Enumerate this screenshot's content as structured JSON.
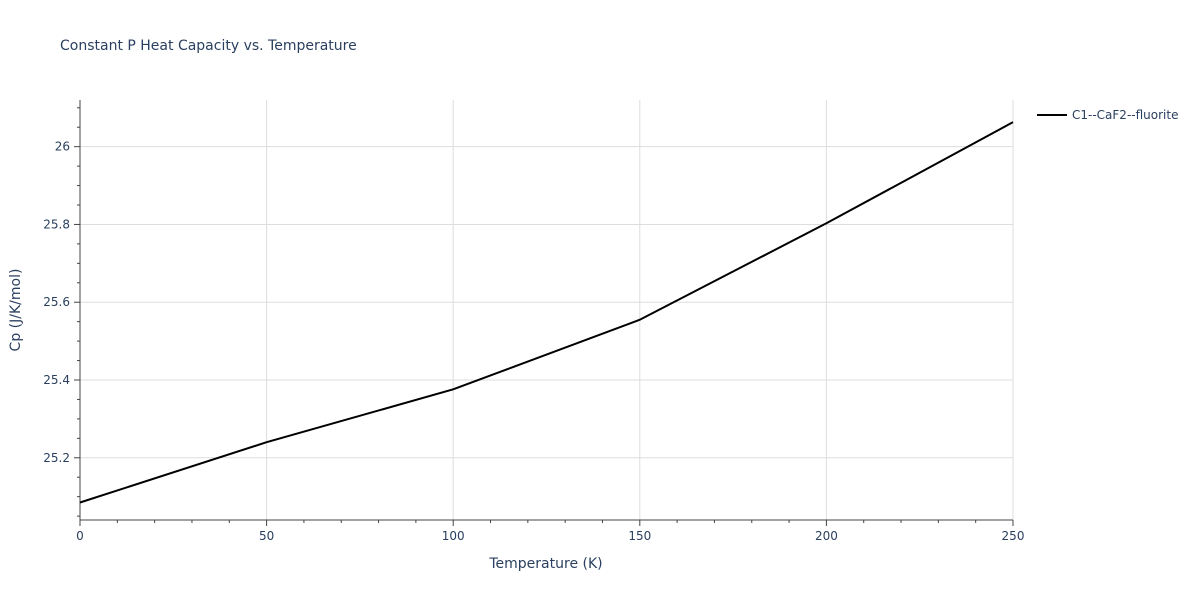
{
  "chart_data": {
    "type": "line",
    "title": "Constant P Heat Capacity vs. Temperature",
    "xlabel": "Temperature (K)",
    "ylabel": "Cp (J/K/mol)",
    "xlim": [
      0,
      250
    ],
    "ylim": [
      25.04,
      26.12
    ],
    "x_ticks": [
      0,
      50,
      100,
      150,
      200,
      250
    ],
    "x_tick_labels": [
      "0",
      "50",
      "100",
      "150",
      "200",
      "250"
    ],
    "y_ticks": [
      25.2,
      25.4,
      25.6,
      25.8,
      26.0
    ],
    "y_tick_labels": [
      "25.2",
      "25.4",
      "25.6",
      "25.8",
      "26"
    ],
    "grid": true,
    "legend_position": "top-right outside",
    "series": [
      {
        "name": "C1--CaF2--fluorite",
        "color": "#000000",
        "x": [
          0,
          50,
          100,
          150,
          200,
          250
        ],
        "y": [
          25.085,
          25.24,
          25.376,
          25.555,
          25.803,
          26.063
        ]
      }
    ]
  }
}
